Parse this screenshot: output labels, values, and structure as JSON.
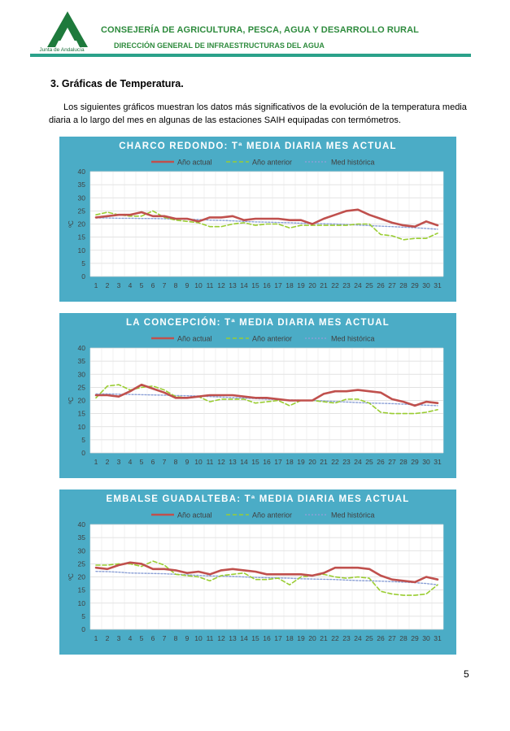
{
  "header": {
    "logo_text": "Junta de Andalucía",
    "title1": "CONSEJERÍA DE AGRICULTURA, PESCA, AGUA Y DESARROLLO RURAL",
    "title2": "DIRECCIÓN GENERAL DE INFRAESTRUCTURAS DEL AGUA"
  },
  "section_title": "3.  Gráficas de Temperatura.",
  "paragraph": "Los siguientes gráficos muestran los datos más significativos de la evolución de la temperatura media diaria a lo largo del mes en algunas de las estaciones SAIH equipadas con termómetros.",
  "page_number": "5",
  "colors": {
    "actual": "#c0504d",
    "anterior": "#9acd32",
    "historica": "#8a9fd6",
    "panel": "#4bacc6"
  },
  "chart_data": [
    {
      "type": "line",
      "title": "CHARCO REDONDO:  Tª MEDIA DIARIA MES ACTUAL",
      "ylabel": "ºC",
      "ylim": [
        0,
        40
      ],
      "yticks": [
        0,
        5,
        10,
        15,
        20,
        25,
        30,
        35,
        40
      ],
      "categories": [
        "1",
        "2",
        "3",
        "4",
        "5",
        "6",
        "7",
        "8",
        "9",
        "10",
        "11",
        "12",
        "13",
        "14",
        "15",
        "16",
        "17",
        "18",
        "19",
        "20",
        "21",
        "22",
        "23",
        "24",
        "25",
        "26",
        "27",
        "28",
        "29",
        "30",
        "31"
      ],
      "series": [
        {
          "name": "Año actual",
          "values": [
            22.5,
            23,
            23.5,
            23.5,
            24.5,
            23,
            23,
            22,
            22,
            21,
            22.5,
            22.5,
            23,
            21.5,
            22,
            22,
            22,
            21.5,
            21.5,
            20,
            22,
            23.5,
            25,
            25.5,
            23.5,
            22,
            20.5,
            19.5,
            19,
            21,
            19.5
          ]
        },
        {
          "name": "Año anterior",
          "values": [
            23.5,
            24.5,
            23.5,
            23,
            23,
            25,
            22.5,
            21.5,
            21,
            20.5,
            19,
            19,
            20,
            20.5,
            19.5,
            20,
            20,
            18.5,
            19.5,
            19.5,
            19.5,
            19.5,
            19.5,
            20,
            20,
            16,
            15.5,
            14,
            14.5,
            14.5,
            16.5
          ]
        },
        {
          "name": "Med histórica",
          "values": [
            22.3,
            22.3,
            22.2,
            22.2,
            22.1,
            22.1,
            22,
            21.9,
            21.8,
            21.7,
            21.5,
            21.4,
            21.2,
            21,
            20.8,
            20.7,
            20.6,
            20.5,
            20.3,
            20.2,
            20.1,
            20,
            19.8,
            19.6,
            19.4,
            19.2,
            19,
            18.8,
            18.6,
            18.3,
            18
          ]
        }
      ]
    },
    {
      "type": "line",
      "title": "LA CONCEPCIÓN: Tª MEDIA DIARIA MES ACTUAL",
      "ylabel": "ºC",
      "ylim": [
        0,
        40
      ],
      "yticks": [
        0,
        5,
        10,
        15,
        20,
        25,
        30,
        35,
        40
      ],
      "categories": [
        "1",
        "2",
        "3",
        "4",
        "5",
        "6",
        "7",
        "8",
        "9",
        "10",
        "11",
        "12",
        "13",
        "14",
        "15",
        "16",
        "17",
        "18",
        "19",
        "20",
        "21",
        "22",
        "23",
        "24",
        "25",
        "26",
        "27",
        "28",
        "29",
        "30",
        "31"
      ],
      "series": [
        {
          "name": "Año actual",
          "values": [
            22,
            22,
            21.5,
            23.5,
            26,
            24.5,
            23,
            21,
            21,
            21.5,
            22,
            22,
            22,
            21.5,
            21,
            21,
            20.5,
            20,
            20,
            20,
            22.5,
            23.5,
            23.5,
            24,
            23.5,
            23,
            20.5,
            19.5,
            18,
            19.5,
            19
          ]
        },
        {
          "name": "Año anterior",
          "values": [
            21,
            25.5,
            26,
            24,
            25,
            25.5,
            24,
            21.5,
            21,
            21.5,
            19.5,
            20.5,
            20.5,
            20.5,
            19,
            19.5,
            20,
            18,
            20,
            20,
            19.5,
            19,
            20.5,
            20.5,
            19,
            15.5,
            15,
            15,
            15,
            15.5,
            16.5
          ]
        },
        {
          "name": "Med histórica",
          "values": [
            22.5,
            22.5,
            22.4,
            22.3,
            22.2,
            22.1,
            22,
            21.9,
            21.8,
            21.7,
            21.5,
            21.3,
            21.1,
            20.9,
            20.7,
            20.5,
            20.3,
            20.2,
            20.1,
            20,
            19.8,
            19.6,
            19.4,
            19.2,
            19,
            18.9,
            18.8,
            18.6,
            18.4,
            18.2,
            18
          ]
        }
      ]
    },
    {
      "type": "line",
      "title": "EMBALSE GUADALTEBA: Tª MEDIA DIARIA MES ACTUAL",
      "ylabel": "ºC",
      "ylim": [
        0,
        40
      ],
      "yticks": [
        0,
        5,
        10,
        15,
        20,
        25,
        30,
        35,
        40
      ],
      "categories": [
        "1",
        "2",
        "3",
        "4",
        "5",
        "6",
        "7",
        "8",
        "9",
        "10",
        "11",
        "12",
        "13",
        "14",
        "15",
        "16",
        "17",
        "18",
        "19",
        "20",
        "21",
        "22",
        "23",
        "24",
        "25",
        "26",
        "27",
        "28",
        "29",
        "30",
        "31"
      ],
      "series": [
        {
          "name": "Año actual",
          "values": [
            23.5,
            23,
            24.5,
            25.5,
            25,
            23,
            23,
            22.5,
            21.5,
            22,
            21,
            22.5,
            23,
            22.5,
            22,
            21,
            21,
            21,
            21,
            20.5,
            21.5,
            23.5,
            23.5,
            23.5,
            23,
            20.5,
            19,
            18.5,
            18,
            20,
            19
          ]
        },
        {
          "name": "Año anterior",
          "values": [
            24.5,
            24.5,
            25,
            25,
            24,
            26,
            24.5,
            21,
            20.5,
            20,
            18.5,
            20.5,
            21,
            21.5,
            19,
            19,
            19.5,
            17,
            20,
            20.5,
            21,
            20,
            19.5,
            20,
            19.5,
            14.5,
            13.5,
            13,
            13,
            13.5,
            17
          ]
        },
        {
          "name": "Med histórica",
          "values": [
            22.1,
            22,
            21.8,
            21.5,
            21.4,
            21.3,
            21.2,
            21,
            20.8,
            20.6,
            20.4,
            20.3,
            20.2,
            20,
            19.8,
            19.7,
            19.6,
            19.5,
            19.3,
            19.2,
            19.1,
            19,
            18.8,
            18.6,
            18.5,
            18.4,
            18.2,
            18,
            17.8,
            17.5,
            17
          ]
        }
      ]
    }
  ]
}
